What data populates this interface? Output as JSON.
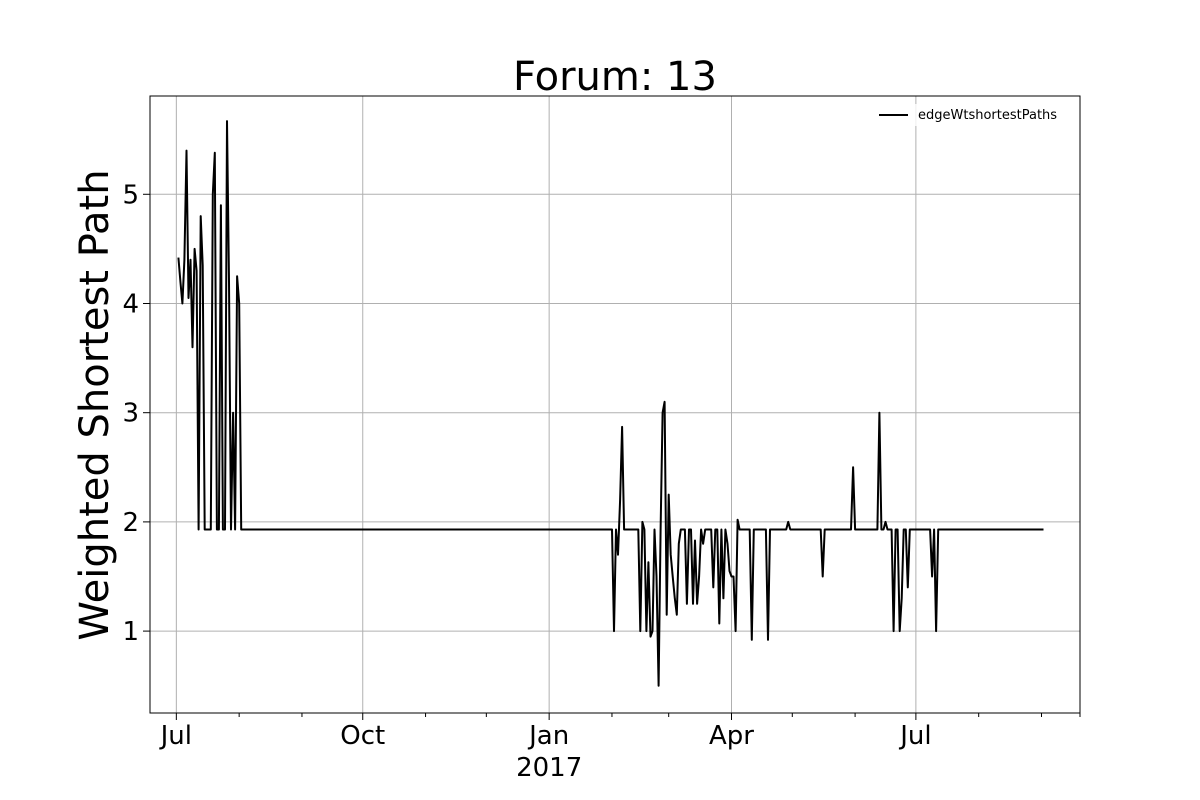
{
  "chart_data": {
    "type": "line",
    "title": "Forum: 13",
    "xlabel": "",
    "ylabel": "Weighted Shortest Path",
    "xlim": [
      "2016-06-18",
      "2017-09-20"
    ],
    "ylim": [
      0.25,
      5.9
    ],
    "grid": true,
    "legend": "top-right",
    "x_ticks": [
      {
        "date": "2016-07-01",
        "label": "Jul",
        "sublabel": ""
      },
      {
        "date": "2016-10-01",
        "label": "Oct",
        "sublabel": ""
      },
      {
        "date": "2017-01-01",
        "label": "Jan",
        "sublabel": "2017"
      },
      {
        "date": "2017-04-01",
        "label": "Apr",
        "sublabel": ""
      },
      {
        "date": "2017-07-01",
        "label": "Jul",
        "sublabel": ""
      }
    ],
    "minor_x_ticks": [
      "2016-08-01",
      "2016-09-01",
      "2016-11-01",
      "2016-12-01",
      "2017-02-01",
      "2017-03-01",
      "2017-05-01",
      "2017-06-01",
      "2017-08-01",
      "2017-09-01"
    ],
    "y_ticks": [
      1,
      2,
      3,
      4,
      5
    ],
    "series": [
      {
        "name": "edgeWtshortestPaths",
        "color": "#000000",
        "points": [
          [
            "2016-07-02",
            4.42
          ],
          [
            "2016-07-03",
            4.2
          ],
          [
            "2016-07-04",
            4.0
          ],
          [
            "2016-07-05",
            4.4
          ],
          [
            "2016-07-06",
            5.4
          ],
          [
            "2016-07-07",
            4.05
          ],
          [
            "2016-07-08",
            4.4
          ],
          [
            "2016-07-09",
            3.6
          ],
          [
            "2016-07-10",
            4.5
          ],
          [
            "2016-07-11",
            4.3
          ],
          [
            "2016-07-12",
            1.93
          ],
          [
            "2016-07-13",
            4.8
          ],
          [
            "2016-07-14",
            4.35
          ],
          [
            "2016-07-15",
            1.93
          ],
          [
            "2016-07-16",
            1.93
          ],
          [
            "2016-07-17",
            1.93
          ],
          [
            "2016-07-18",
            1.93
          ],
          [
            "2016-07-19",
            5.0
          ],
          [
            "2016-07-20",
            5.38
          ],
          [
            "2016-07-21",
            1.93
          ],
          [
            "2016-07-22",
            1.93
          ],
          [
            "2016-07-23",
            4.9
          ],
          [
            "2016-07-24",
            1.93
          ],
          [
            "2016-07-25",
            1.93
          ],
          [
            "2016-07-26",
            5.67
          ],
          [
            "2016-07-27",
            4.2
          ],
          [
            "2016-07-28",
            1.93
          ],
          [
            "2016-07-29",
            3.0
          ],
          [
            "2016-07-30",
            1.93
          ],
          [
            "2016-07-31",
            4.25
          ],
          [
            "2016-08-01",
            4.0
          ],
          [
            "2016-08-02",
            1.93
          ],
          [
            "2016-08-10",
            1.93
          ],
          [
            "2016-09-01",
            1.93
          ],
          [
            "2016-10-01",
            1.93
          ],
          [
            "2016-11-01",
            1.93
          ],
          [
            "2016-12-01",
            1.93
          ],
          [
            "2017-01-01",
            1.93
          ],
          [
            "2017-02-01",
            1.93
          ],
          [
            "2017-02-02",
            1.0
          ],
          [
            "2017-02-03",
            1.93
          ],
          [
            "2017-02-04",
            1.7
          ],
          [
            "2017-02-05",
            2.2
          ],
          [
            "2017-02-06",
            2.87
          ],
          [
            "2017-02-07",
            1.93
          ],
          [
            "2017-02-08",
            1.93
          ],
          [
            "2017-02-14",
            1.93
          ],
          [
            "2017-02-15",
            1.0
          ],
          [
            "2017-02-16",
            2.0
          ],
          [
            "2017-02-17",
            1.93
          ],
          [
            "2017-02-18",
            1.0
          ],
          [
            "2017-02-19",
            1.63
          ],
          [
            "2017-02-20",
            0.95
          ],
          [
            "2017-02-21",
            1.0
          ],
          [
            "2017-02-22",
            1.93
          ],
          [
            "2017-02-23",
            1.5
          ],
          [
            "2017-02-24",
            0.5
          ],
          [
            "2017-02-25",
            1.93
          ],
          [
            "2017-02-26",
            3.0
          ],
          [
            "2017-02-27",
            3.1
          ],
          [
            "2017-02-28",
            1.15
          ],
          [
            "2017-03-01",
            2.25
          ],
          [
            "2017-03-02",
            1.7
          ],
          [
            "2017-03-03",
            1.5
          ],
          [
            "2017-03-04",
            1.3
          ],
          [
            "2017-03-05",
            1.15
          ],
          [
            "2017-03-06",
            1.8
          ],
          [
            "2017-03-07",
            1.93
          ],
          [
            "2017-03-08",
            1.93
          ],
          [
            "2017-03-09",
            1.93
          ],
          [
            "2017-03-10",
            1.25
          ],
          [
            "2017-03-11",
            1.93
          ],
          [
            "2017-03-12",
            1.93
          ],
          [
            "2017-03-13",
            1.25
          ],
          [
            "2017-03-14",
            1.83
          ],
          [
            "2017-03-15",
            1.25
          ],
          [
            "2017-03-16",
            1.5
          ],
          [
            "2017-03-17",
            1.93
          ],
          [
            "2017-03-18",
            1.8
          ],
          [
            "2017-03-19",
            1.93
          ],
          [
            "2017-03-20",
            1.93
          ],
          [
            "2017-03-21",
            1.93
          ],
          [
            "2017-03-22",
            1.93
          ],
          [
            "2017-03-23",
            1.4
          ],
          [
            "2017-03-24",
            1.93
          ],
          [
            "2017-03-25",
            1.93
          ],
          [
            "2017-03-26",
            1.07
          ],
          [
            "2017-03-27",
            1.93
          ],
          [
            "2017-03-28",
            1.3
          ],
          [
            "2017-03-29",
            1.93
          ],
          [
            "2017-03-30",
            1.8
          ],
          [
            "2017-03-31",
            1.55
          ],
          [
            "2017-04-01",
            1.5
          ],
          [
            "2017-04-02",
            1.5
          ],
          [
            "2017-04-03",
            1.0
          ],
          [
            "2017-04-04",
            2.02
          ],
          [
            "2017-04-05",
            1.93
          ],
          [
            "2017-04-06",
            1.93
          ],
          [
            "2017-04-10",
            1.93
          ],
          [
            "2017-04-11",
            0.92
          ],
          [
            "2017-04-12",
            1.93
          ],
          [
            "2017-04-18",
            1.93
          ],
          [
            "2017-04-19",
            0.92
          ],
          [
            "2017-04-20",
            1.93
          ],
          [
            "2017-04-28",
            1.93
          ],
          [
            "2017-04-29",
            2.0
          ],
          [
            "2017-04-30",
            1.93
          ],
          [
            "2017-05-15",
            1.93
          ],
          [
            "2017-05-16",
            1.5
          ],
          [
            "2017-05-17",
            1.93
          ],
          [
            "2017-05-30",
            1.93
          ],
          [
            "2017-05-31",
            2.5
          ],
          [
            "2017-06-01",
            1.93
          ],
          [
            "2017-06-12",
            1.93
          ],
          [
            "2017-06-13",
            3.0
          ],
          [
            "2017-06-14",
            1.93
          ],
          [
            "2017-06-15",
            1.93
          ],
          [
            "2017-06-16",
            2.0
          ],
          [
            "2017-06-17",
            1.93
          ],
          [
            "2017-06-19",
            1.93
          ],
          [
            "2017-06-20",
            1.0
          ],
          [
            "2017-06-21",
            1.93
          ],
          [
            "2017-06-22",
            1.93
          ],
          [
            "2017-06-23",
            1.0
          ],
          [
            "2017-06-24",
            1.3
          ],
          [
            "2017-06-25",
            1.93
          ],
          [
            "2017-06-26",
            1.93
          ],
          [
            "2017-06-27",
            1.4
          ],
          [
            "2017-06-28",
            1.93
          ],
          [
            "2017-07-01",
            1.93
          ],
          [
            "2017-07-08",
            1.93
          ],
          [
            "2017-07-09",
            1.5
          ],
          [
            "2017-07-10",
            1.93
          ],
          [
            "2017-07-11",
            1.0
          ],
          [
            "2017-07-12",
            1.93
          ],
          [
            "2017-08-01",
            1.93
          ],
          [
            "2017-09-01",
            1.93
          ],
          [
            "2017-09-02",
            1.93
          ]
        ]
      }
    ]
  }
}
